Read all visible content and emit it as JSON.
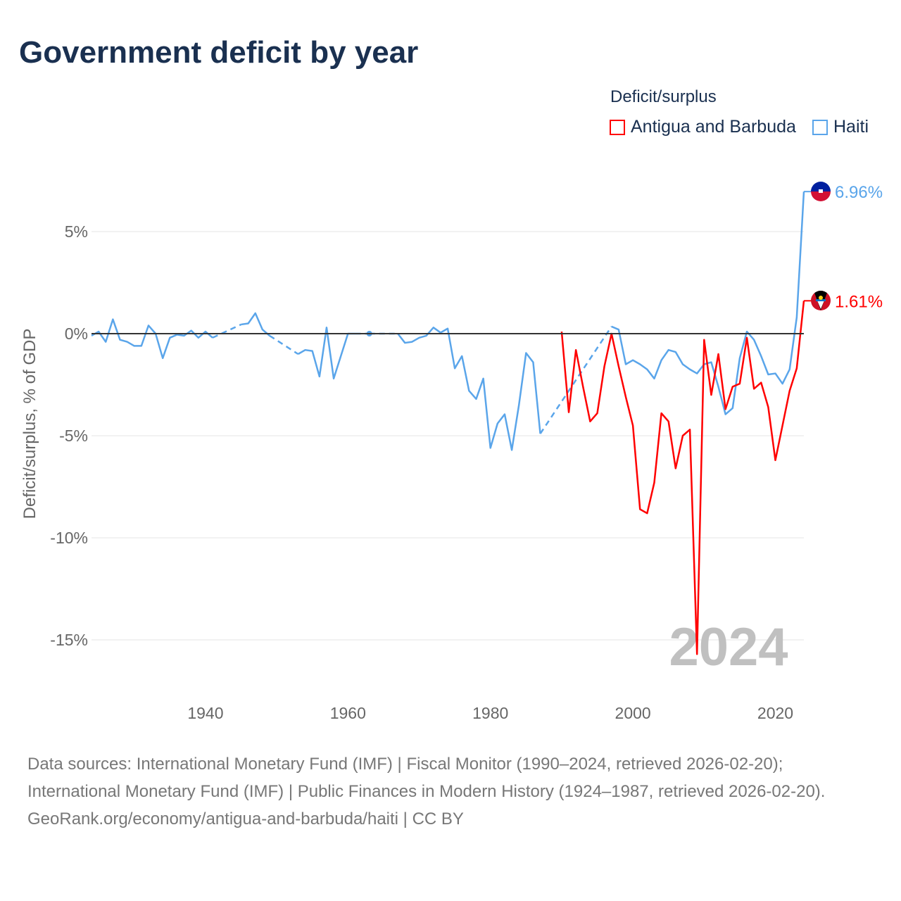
{
  "title": "Government deficit by year",
  "legend": {
    "title": "Deficit/surplus",
    "items": [
      {
        "label": "Antigua and Barbuda",
        "color": "#ff0000"
      },
      {
        "label": "Haiti",
        "color": "#5aa5ea"
      }
    ]
  },
  "year_watermark": "2024",
  "footer": {
    "sources": "Data sources: International Monetary Fund (IMF) | Fiscal Monitor (1990–2024, retrieved 2026-02-20); International Monetary Fund (IMF) | Public Finances in Modern History (1924–1987, retrieved 2026-02-20).",
    "credit": "GeoRank.org/economy/antigua-and-barbuda/haiti | CC BY"
  },
  "chart_data": {
    "type": "line",
    "title": "Government deficit by year",
    "xlabel": "",
    "ylabel": "Deficit/surplus, % of GDP",
    "xlim": [
      1924,
      2024
    ],
    "ylim": [
      -17,
      9
    ],
    "xticks": [
      1940,
      1960,
      1980,
      2000,
      2020
    ],
    "yticks": [
      {
        "v": 5,
        "label": "5%"
      },
      {
        "v": 0,
        "label": "0%"
      },
      {
        "v": -5,
        "label": "-5%"
      },
      {
        "v": -10,
        "label": "-10%"
      },
      {
        "v": -15,
        "label": "-15%"
      }
    ],
    "series": [
      {
        "name": "Haiti",
        "color": "#5aa5ea",
        "end_label": "6.96%",
        "points": [
          [
            1924,
            -0.1
          ],
          [
            1925,
            0.1
          ],
          [
            1926,
            -0.4
          ],
          [
            1927,
            0.7
          ],
          [
            1928,
            -0.3
          ],
          [
            1929,
            -0.4
          ],
          [
            1930,
            -0.6
          ],
          [
            1931,
            -0.6
          ],
          [
            1932,
            0.4
          ],
          [
            1933,
            0
          ],
          [
            1934,
            -1.2
          ],
          [
            1935,
            -0.2
          ],
          [
            1936,
            -0.05
          ],
          [
            1937,
            -0.1
          ],
          [
            1938,
            0.15
          ],
          [
            1939,
            -0.2
          ],
          [
            1940,
            0.1
          ],
          [
            1941,
            -0.2
          ],
          [
            1945,
            0.45
          ],
          [
            1946,
            0.5
          ],
          [
            1947,
            1.0
          ],
          [
            1948,
            0.2
          ],
          [
            1949,
            -0.1
          ],
          [
            1953,
            -1.0
          ],
          [
            1954,
            -0.8
          ],
          [
            1955,
            -0.85
          ],
          [
            1956,
            -2.1
          ],
          [
            1957,
            0.3
          ],
          [
            1958,
            -2.2
          ],
          [
            1959,
            -1.1
          ],
          [
            1960,
            0
          ],
          [
            1961,
            0
          ],
          [
            1963,
            0
          ],
          [
            1967,
            0
          ],
          [
            1968,
            -0.45
          ],
          [
            1969,
            -0.4
          ],
          [
            1970,
            -0.2
          ],
          [
            1971,
            -0.1
          ],
          [
            1972,
            0.3
          ],
          [
            1973,
            0.05
          ],
          [
            1974,
            0.25
          ],
          [
            1975,
            -1.7
          ],
          [
            1976,
            -1.1
          ],
          [
            1977,
            -2.8
          ],
          [
            1978,
            -3.2
          ],
          [
            1979,
            -2.2
          ],
          [
            1980,
            -5.6
          ],
          [
            1981,
            -4.4
          ],
          [
            1982,
            -3.95
          ],
          [
            1983,
            -5.7
          ],
          [
            1984,
            -3.5
          ],
          [
            1985,
            -0.95
          ],
          [
            1986,
            -1.4
          ],
          [
            1987,
            -4.9
          ],
          [
            1997,
            0.35
          ],
          [
            1998,
            0.2
          ],
          [
            1999,
            -1.5
          ],
          [
            2000,
            -1.3
          ],
          [
            2001,
            -1.5
          ],
          [
            2002,
            -1.75
          ],
          [
            2003,
            -2.2
          ],
          [
            2004,
            -1.3
          ],
          [
            2005,
            -0.8
          ],
          [
            2006,
            -0.9
          ],
          [
            2007,
            -1.5
          ],
          [
            2008,
            -1.75
          ],
          [
            2009,
            -1.95
          ],
          [
            2010,
            -1.5
          ],
          [
            2011,
            -1.4
          ],
          [
            2012,
            -2.6
          ],
          [
            2013,
            -3.95
          ],
          [
            2014,
            -3.65
          ],
          [
            2015,
            -1.2
          ],
          [
            2016,
            0.1
          ],
          [
            2017,
            -0.3
          ],
          [
            2018,
            -1.1
          ],
          [
            2019,
            -2.0
          ],
          [
            2020,
            -1.95
          ],
          [
            2021,
            -2.45
          ],
          [
            2022,
            -1.75
          ],
          [
            2023,
            0.8
          ],
          [
            2024,
            6.96
          ]
        ]
      },
      {
        "name": "Antigua and Barbuda",
        "color": "#ff0000",
        "end_label": "1.61%",
        "points": [
          [
            1990,
            0.1
          ],
          [
            1991,
            -3.85
          ],
          [
            1992,
            -0.8
          ],
          [
            1993,
            -2.6
          ],
          [
            1994,
            -4.3
          ],
          [
            1995,
            -3.9
          ],
          [
            1996,
            -1.6
          ],
          [
            1997,
            0
          ],
          [
            1998,
            -1.6
          ],
          [
            1999,
            -3.1
          ],
          [
            2000,
            -4.5
          ],
          [
            2001,
            -8.6
          ],
          [
            2002,
            -8.8
          ],
          [
            2003,
            -7.3
          ],
          [
            2004,
            -3.9
          ],
          [
            2005,
            -4.3
          ],
          [
            2006,
            -6.6
          ],
          [
            2007,
            -5.0
          ],
          [
            2008,
            -4.7
          ],
          [
            2009,
            -15.7
          ],
          [
            2010,
            -0.3
          ],
          [
            2011,
            -3.0
          ],
          [
            2012,
            -1.0
          ],
          [
            2013,
            -3.7
          ],
          [
            2014,
            -2.6
          ],
          [
            2015,
            -2.45
          ],
          [
            2016,
            -0.2
          ],
          [
            2017,
            -2.7
          ],
          [
            2018,
            -2.4
          ],
          [
            2019,
            -3.6
          ],
          [
            2020,
            -6.2
          ],
          [
            2021,
            -4.5
          ],
          [
            2022,
            -2.8
          ],
          [
            2023,
            -1.7
          ],
          [
            2024,
            1.61
          ]
        ]
      }
    ]
  }
}
